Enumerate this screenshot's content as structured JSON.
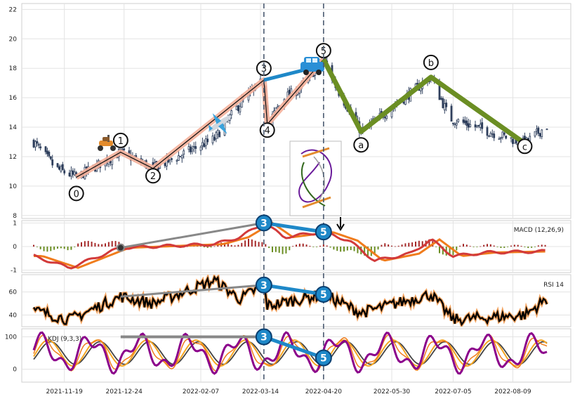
{
  "chart_data": {
    "type": "candlestick",
    "x_dates": [
      "2021-11-19",
      "2021-12-24",
      "2022-02-07",
      "2022-03-14",
      "2022-04-20",
      "2022-05-30",
      "2022-07-05",
      "2022-08-09"
    ],
    "x_tick_labels": [
      "2021-11-19",
      "2021-12-24",
      "2022-02-07",
      "2022-03-14",
      "2022-04-20",
      "2022-05-30",
      "2022-07-05",
      "2022-08-09"
    ],
    "x_range": [
      "2021-10-25",
      "2022-09-12"
    ],
    "grid": true,
    "price_panel": {
      "ylim": [
        7.8,
        22.4
      ],
      "yticks": [
        8,
        10,
        12,
        14,
        16,
        18,
        20,
        22
      ],
      "candle_color": "#2e3f5c",
      "keyframes": [
        [
          "2021-11-01",
          13.0
        ],
        [
          "2021-11-14",
          11.2
        ],
        [
          "2021-11-26",
          10.6
        ],
        [
          "2021-12-22",
          12.3
        ],
        [
          "2022-01-10",
          11.2
        ],
        [
          "2022-02-15",
          13.2
        ],
        [
          "2022-03-02",
          15.6
        ],
        [
          "2022-03-16",
          17.2
        ],
        [
          "2022-03-18",
          14.2
        ],
        [
          "2022-03-28",
          16.0
        ],
        [
          "2022-04-06",
          16.6
        ],
        [
          "2022-04-20",
          18.6
        ],
        [
          "2022-04-27",
          16.8
        ],
        [
          "2022-05-12",
          13.7
        ],
        [
          "2022-06-22",
          17.4
        ],
        [
          "2022-07-03",
          14.6
        ],
        [
          "2022-08-16",
          12.9
        ],
        [
          "2022-08-29",
          14.1
        ]
      ],
      "waves": [
        {
          "label": "0",
          "date": "2021-11-26",
          "price": 10.6,
          "circle_price": 9.5
        },
        {
          "label": "1",
          "date": "2021-12-22",
          "price": 12.3,
          "circle_price": 13.1
        },
        {
          "label": "2",
          "date": "2022-01-10",
          "price": 11.2,
          "circle_price": 10.7
        },
        {
          "label": "3",
          "date": "2022-03-16",
          "price": 17.2,
          "circle_price": 18.0
        },
        {
          "label": "4",
          "date": "2022-03-18",
          "price": 14.2,
          "circle_price": 13.8
        },
        {
          "label": "5",
          "date": "2022-04-20",
          "price": 18.6,
          "circle_price": 19.2
        },
        {
          "label": "a",
          "date": "2022-05-12",
          "price": 13.7,
          "circle_price": 12.8
        },
        {
          "label": "b",
          "date": "2022-06-22",
          "price": 17.4,
          "circle_price": 18.4
        },
        {
          "label": "c",
          "date": "2022-08-16",
          "price": 12.9,
          "circle_price": 12.7
        }
      ],
      "impulse_color": "#f5b09a",
      "correction_color": "#6b8e23",
      "divergence_color": "#1e88c8"
    },
    "vertical_markers": [
      "2022-03-16",
      "2022-04-20"
    ],
    "macd_panel": {
      "label": "MACD (12,26,9)",
      "ylim": [
        -1.1,
        1.1
      ],
      "yticks": [
        -1,
        0,
        1
      ],
      "keyframes": [
        [
          "2021-11-01",
          -0.4
        ],
        [
          "2021-11-22",
          -0.9
        ],
        [
          "2021-12-22",
          -0.05
        ],
        [
          "2022-01-10",
          0.0
        ],
        [
          "2022-02-15",
          0.1
        ],
        [
          "2022-03-02",
          0.4
        ],
        [
          "2022-03-16",
          1.0
        ],
        [
          "2022-03-28",
          0.4
        ],
        [
          "2022-04-20",
          0.62
        ],
        [
          "2022-05-05",
          0.25
        ],
        [
          "2022-05-20",
          -0.6
        ],
        [
          "2022-06-10",
          -0.3
        ],
        [
          "2022-06-22",
          0.3
        ],
        [
          "2022-07-05",
          -0.4
        ],
        [
          "2022-07-25",
          -0.25
        ],
        [
          "2022-08-29",
          -0.2
        ]
      ]
    },
    "rsi_panel": {
      "label": "RSI 14",
      "ylim": [
        30,
        75
      ],
      "yticks": [
        40,
        60
      ],
      "keyframes": [
        [
          "2021-11-01",
          44
        ],
        [
          "2021-11-22",
          36
        ],
        [
          "2021-12-22",
          56
        ],
        [
          "2022-01-10",
          50
        ],
        [
          "2022-02-15",
          70
        ],
        [
          "2022-03-02",
          54
        ],
        [
          "2022-03-16",
          66
        ],
        [
          "2022-03-18",
          48
        ],
        [
          "2022-04-20",
          58
        ],
        [
          "2022-05-12",
          42
        ],
        [
          "2022-06-22",
          58
        ],
        [
          "2022-07-05",
          36
        ],
        [
          "2022-08-16",
          40
        ],
        [
          "2022-08-29",
          54
        ]
      ]
    },
    "kdj_panel": {
      "label": "KDJ (9,3,3)",
      "ylim": [
        -40,
        125
      ],
      "yticks": [
        0,
        100
      ]
    },
    "divergences": [
      {
        "label": "3",
        "date": "2022-03-16"
      },
      {
        "label": "5",
        "date": "2022-04-20"
      }
    ]
  }
}
